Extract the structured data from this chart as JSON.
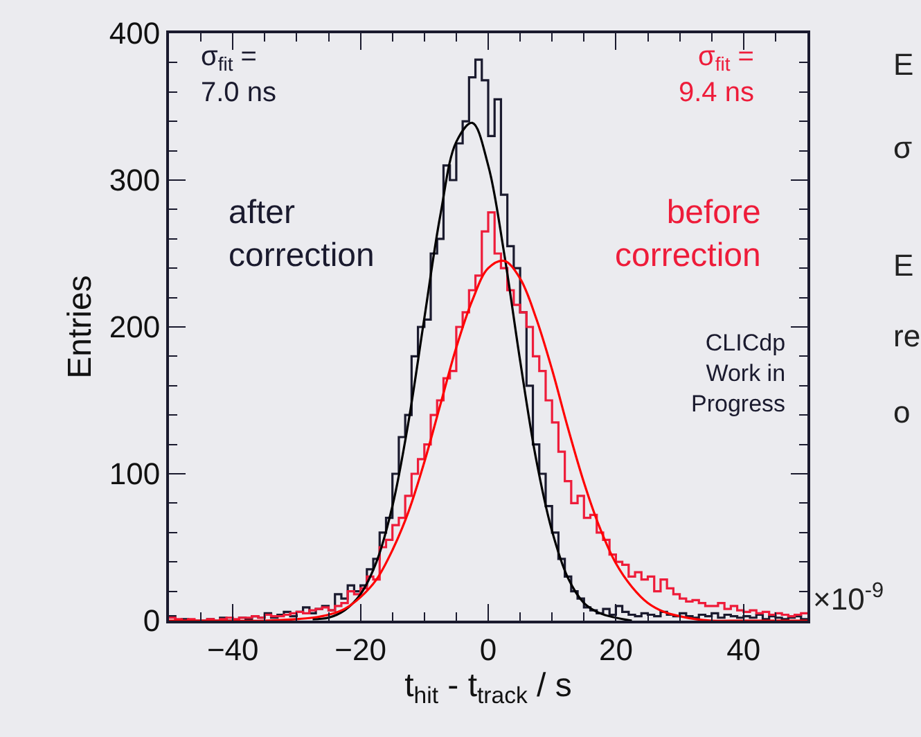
{
  "chart_data": {
    "type": "histogram",
    "xlabel": "t$_{hit}$ - t$_{track}$ / s",
    "ylabel": "Entries",
    "bins": [
      -50,
      -49,
      -48,
      -47,
      -46,
      -45,
      -44,
      -43,
      -42,
      -41,
      -40,
      -39,
      -38,
      -37,
      -36,
      -35,
      -34,
      -33,
      -32,
      -31,
      -30,
      -29,
      -28,
      -27,
      -26,
      -25,
      -24,
      -23,
      -22,
      -21,
      -20,
      -19,
      -18,
      -17,
      -16,
      -15,
      -14,
      -13,
      -12,
      -11,
      -10,
      -9,
      -8,
      -7,
      -6,
      -5,
      -4,
      -3,
      -2,
      -1,
      0,
      1,
      2,
      3,
      4,
      5,
      6,
      7,
      8,
      9,
      10,
      11,
      12,
      13,
      14,
      15,
      16,
      17,
      18,
      19,
      20,
      21,
      22,
      23,
      24,
      25,
      26,
      27,
      28,
      29,
      30,
      31,
      32,
      33,
      34,
      35,
      36,
      37,
      38,
      39,
      40,
      41,
      42,
      43,
      44,
      45,
      46,
      47,
      48,
      49,
      50
    ],
    "series": [
      {
        "color": "#1a1a2e",
        "values": [
          3,
          0,
          1,
          0,
          0,
          0,
          1,
          0,
          2,
          0,
          0,
          2,
          1,
          3,
          2,
          5,
          2,
          4,
          6,
          3,
          6,
          9,
          5,
          8,
          10,
          7,
          18,
          15,
          24,
          20,
          24,
          35,
          42,
          60,
          70,
          100,
          125,
          140,
          180,
          200,
          205,
          250,
          260,
          310,
          300,
          325,
          340,
          370,
          382,
          368,
          330,
          355,
          290,
          255,
          240,
          210,
          160,
          120,
          100,
          78,
          60,
          42,
          30,
          20,
          15,
          9,
          7,
          5,
          8,
          4,
          10,
          6,
          4,
          3,
          5,
          4,
          3,
          6,
          4,
          3,
          5,
          3,
          2,
          4,
          3,
          5,
          2,
          4,
          3,
          2,
          3,
          2,
          4,
          1,
          3,
          2,
          1,
          2,
          3,
          1
        ]
      },
      {
        "color": "#ee1c3a",
        "values": [
          2,
          1,
          0,
          1,
          0,
          0,
          1,
          0,
          1,
          2,
          1,
          2,
          2,
          3,
          2,
          4,
          3,
          3,
          4,
          5,
          6,
          5,
          7,
          8,
          9,
          7,
          10,
          12,
          20,
          18,
          22,
          30,
          28,
          50,
          55,
          65,
          70,
          85,
          100,
          110,
          120,
          140,
          150,
          165,
          170,
          200,
          210,
          225,
          235,
          265,
          278,
          250,
          240,
          225,
          215,
          210,
          200,
          180,
          170,
          150,
          135,
          115,
          95,
          80,
          85,
          70,
          72,
          60,
          55,
          45,
          40,
          38,
          30,
          33,
          28,
          30,
          20,
          28,
          22,
          18,
          15,
          13,
          14,
          12,
          10,
          10,
          12,
          8,
          10,
          7,
          6,
          7,
          5,
          6,
          4,
          5,
          4,
          3,
          4,
          5
        ]
      },
      {
        "type": "line",
        "color": "#000000",
        "x": [
          -27.5,
          -25,
          -22.5,
          -20,
          -17.5,
          -15,
          -12.5,
          -10,
          -7.5,
          -5,
          -2.5,
          0,
          2.5,
          5,
          7.5,
          10,
          12.5,
          15,
          17.5,
          20,
          22.5
        ],
        "values": [
          1,
          2,
          7,
          18,
          40,
          78,
          135,
          206,
          276,
          326,
          339,
          310,
          250,
          177,
          110,
          61,
          29,
          12,
          5,
          2,
          0
        ]
      },
      {
        "type": "line",
        "color": "#ff0000",
        "x": [
          -50,
          -35,
          -30,
          -27.5,
          -25,
          -22.5,
          -20,
          -17.5,
          -15,
          -12.5,
          -10,
          -7.5,
          -5,
          -2.5,
          0,
          2.5,
          5,
          7.5,
          10,
          12.5,
          15,
          17.5,
          20,
          22.5,
          25,
          27.5,
          30,
          32.5,
          35,
          40,
          50
        ],
        "values": [
          0,
          0,
          1,
          2,
          4,
          8,
          16,
          28,
          48,
          74,
          108,
          147,
          186,
          218,
          240,
          245,
          233,
          206,
          171,
          131,
          94,
          63,
          39,
          23,
          12,
          6,
          3,
          1,
          0,
          0,
          0
        ]
      }
    ],
    "xlim": [
      -50,
      50
    ],
    "xticks": [
      {
        "value": -40,
        "label": "−40"
      },
      {
        "value": -20,
        "label": "−20"
      },
      0,
      20,
      40
    ],
    "ylim": [
      0,
      400
    ],
    "yticks": [
      0,
      100,
      200,
      300,
      400
    ],
    "annotations": [
      "σ$_{fit}$ =\n7.0 ns",
      "after\ncorrection",
      "σ$_{fit}$ =\n9.4 ns",
      "before\ncorrection",
      "CLICdp\nWork in\nProgress",
      "×10$^{-9}$",
      "E",
      "σ",
      "E",
      "re",
      "o"
    ],
    "grid": false,
    "line_style": "solid"
  }
}
